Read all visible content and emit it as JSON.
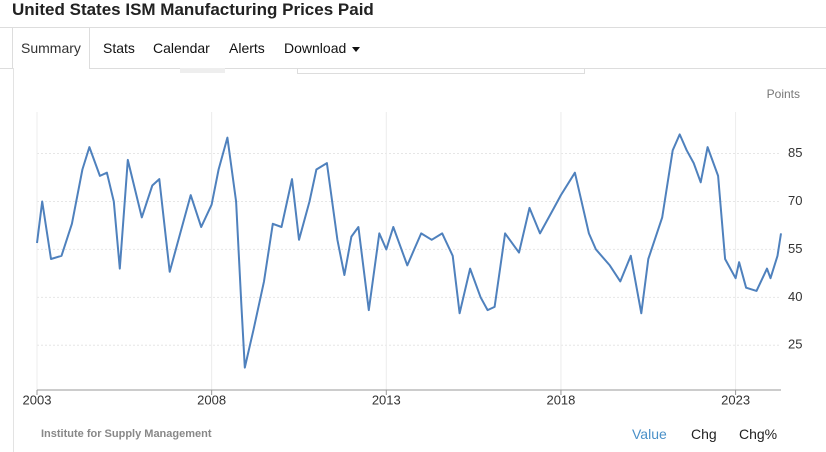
{
  "header": {
    "title": "United States ISM Manufacturing Prices Paid"
  },
  "tabs": [
    "Summary",
    "Stats",
    "Calendar",
    "Alerts",
    "Download"
  ],
  "chart_data": {
    "type": "line",
    "unit_label": "Points",
    "color": "#4f81bd",
    "x": [
      2003.0,
      2003.15,
      2003.4,
      2003.7,
      2004.0,
      2004.3,
      2004.5,
      2004.8,
      2005.0,
      2005.2,
      2005.37,
      2005.6,
      2006.0,
      2006.3,
      2006.5,
      2006.8,
      2007.1,
      2007.4,
      2007.7,
      2008.0,
      2008.2,
      2008.45,
      2008.7,
      2008.85,
      2008.95,
      2009.2,
      2009.5,
      2009.75,
      2010.0,
      2010.3,
      2010.5,
      2010.8,
      2011.0,
      2011.3,
      2011.6,
      2011.8,
      2012.0,
      2012.2,
      2012.5,
      2012.8,
      2013.0,
      2013.2,
      2013.6,
      2013.8,
      2014.0,
      2014.3,
      2014.6,
      2014.9,
      2015.1,
      2015.4,
      2015.7,
      2015.9,
      2016.1,
      2016.4,
      2016.8,
      2017.1,
      2017.4,
      2017.8,
      2018.0,
      2018.4,
      2018.8,
      2019.0,
      2019.4,
      2019.7,
      2020.0,
      2020.3,
      2020.5,
      2020.9,
      2021.2,
      2021.4,
      2021.6,
      2021.8,
      2022.0,
      2022.2,
      2022.5,
      2022.7,
      2023.0,
      2023.1,
      2023.3,
      2023.6,
      2023.9,
      2024.0,
      2024.2,
      2024.3
    ],
    "values": [
      57,
      70,
      52,
      53,
      63,
      80,
      87,
      78,
      79,
      70,
      49,
      83,
      65,
      75,
      77,
      48,
      60,
      72,
      62,
      69,
      80,
      90,
      70,
      38,
      18,
      30,
      45,
      63,
      62,
      77,
      58,
      70,
      80,
      82,
      58,
      47,
      59,
      62,
      36,
      60,
      55,
      62,
      50,
      55,
      60,
      58,
      60,
      53,
      35,
      49,
      40,
      36,
      37,
      60,
      54,
      68,
      60,
      68,
      72,
      79,
      60,
      55,
      50,
      45,
      53,
      35,
      52,
      65,
      86,
      91,
      86,
      82,
      76,
      87,
      78,
      52,
      46,
      51,
      43,
      42,
      49,
      46,
      53,
      60
    ],
    "xlim": [
      2003,
      2024.3
    ],
    "xticks": [
      2003,
      2008,
      2013,
      2018,
      2023
    ],
    "ylim": [
      11,
      98
    ],
    "yticks": [
      25,
      40,
      55,
      70,
      85
    ],
    "grid": true
  },
  "source": "Institute for Supply Management",
  "footer_buttons": [
    "Value",
    "Chg",
    "Chg%"
  ]
}
